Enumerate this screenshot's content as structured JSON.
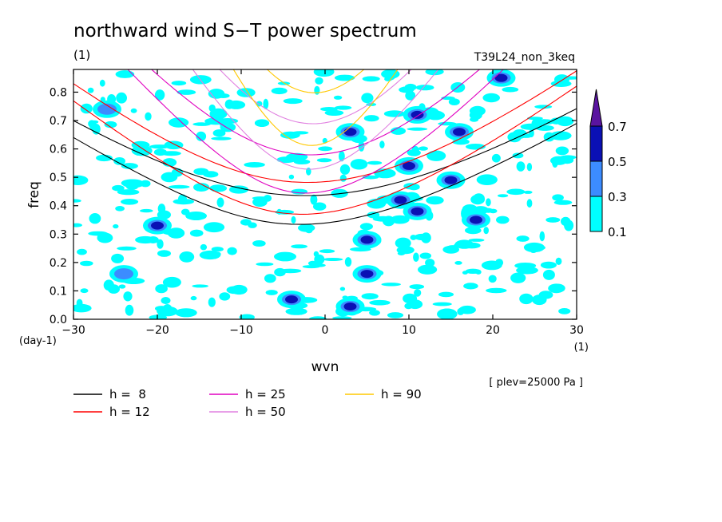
{
  "chart_data": {
    "type": "heatmap",
    "title": "northward wind S−T power spectrum",
    "subtitle": "(1)",
    "experiment": "T39L24_non_3keq",
    "xlabel": "wvn",
    "xunit": "(1)",
    "ylabel": "freq",
    "yunit": "(day-1)",
    "level_note": "[ plev=25000 Pa ]",
    "xlim": [
      -30,
      30
    ],
    "ylim": [
      0,
      0.88
    ],
    "xticks": [
      -30,
      -20,
      -10,
      0,
      10,
      20,
      30
    ],
    "yticks": [
      0.0,
      0.1,
      0.2,
      0.3,
      0.4,
      0.5,
      0.6,
      0.7,
      0.8
    ],
    "colorbar": {
      "levels": [
        0.1,
        0.3,
        0.5,
        0.7
      ],
      "colors": [
        "#00ffff",
        "#3c8cff",
        "#0a10b4",
        "#5a14a0"
      ]
    },
    "shaded_regions": [
      {
        "x": 3,
        "y": 0.045,
        "level": 0.7
      },
      {
        "x": 5,
        "y": 0.16,
        "level": 0.7
      },
      {
        "x": 9,
        "y": 0.42,
        "level": 0.5
      },
      {
        "x": 10,
        "y": 0.54,
        "level": 0.5
      },
      {
        "x": 11,
        "y": 0.72,
        "level": 0.5
      },
      {
        "x": 16,
        "y": 0.66,
        "level": 0.5
      },
      {
        "x": 15,
        "y": 0.49,
        "level": 0.5
      },
      {
        "x": -4,
        "y": 0.07,
        "level": 0.5
      },
      {
        "x": -20,
        "y": 0.33,
        "level": 0.5
      },
      {
        "x": 18,
        "y": 0.35,
        "level": 0.5
      },
      {
        "x": 21,
        "y": 0.85,
        "level": 0.5
      },
      {
        "x": 11,
        "y": 0.38,
        "level": 0.5
      },
      {
        "x": 3,
        "y": 0.66,
        "level": 0.5
      },
      {
        "x": 5,
        "y": 0.28,
        "level": 0.5
      },
      {
        "x": -26,
        "y": 0.74,
        "level": 0.3
      },
      {
        "x": -24,
        "y": 0.16,
        "level": 0.3
      }
    ],
    "dispersion_curves": [
      {
        "label": "h =  8",
        "color": "#000000",
        "kind": "n2"
      },
      {
        "label": "h =  8",
        "color": "#000000",
        "kind": "n1"
      },
      {
        "label": "h = 12",
        "color": "#ff0000",
        "kind": "n2"
      },
      {
        "label": "h = 12",
        "color": "#ff0000",
        "kind": "n1"
      },
      {
        "label": "h = 25",
        "color": "#e000c0",
        "kind": "n2"
      },
      {
        "label": "h = 25",
        "color": "#e000c0",
        "kind": "n1"
      },
      {
        "label": "h = 50",
        "color": "#e080e0",
        "kind": "n2"
      },
      {
        "label": "h = 50",
        "color": "#e080e0",
        "kind": "n1"
      },
      {
        "label": "h = 90",
        "color": "#ffc800",
        "kind": "n2"
      },
      {
        "label": "h = 90",
        "color": "#ffc800",
        "kind": "n1"
      }
    ],
    "legend": [
      {
        "label": "h =  8",
        "color": "#000000"
      },
      {
        "label": "h = 12",
        "color": "#ff0000"
      },
      {
        "label": "h = 25",
        "color": "#e000c0"
      },
      {
        "label": "h = 50",
        "color": "#e080e0"
      },
      {
        "label": "h = 90",
        "color": "#ffc800"
      }
    ]
  }
}
